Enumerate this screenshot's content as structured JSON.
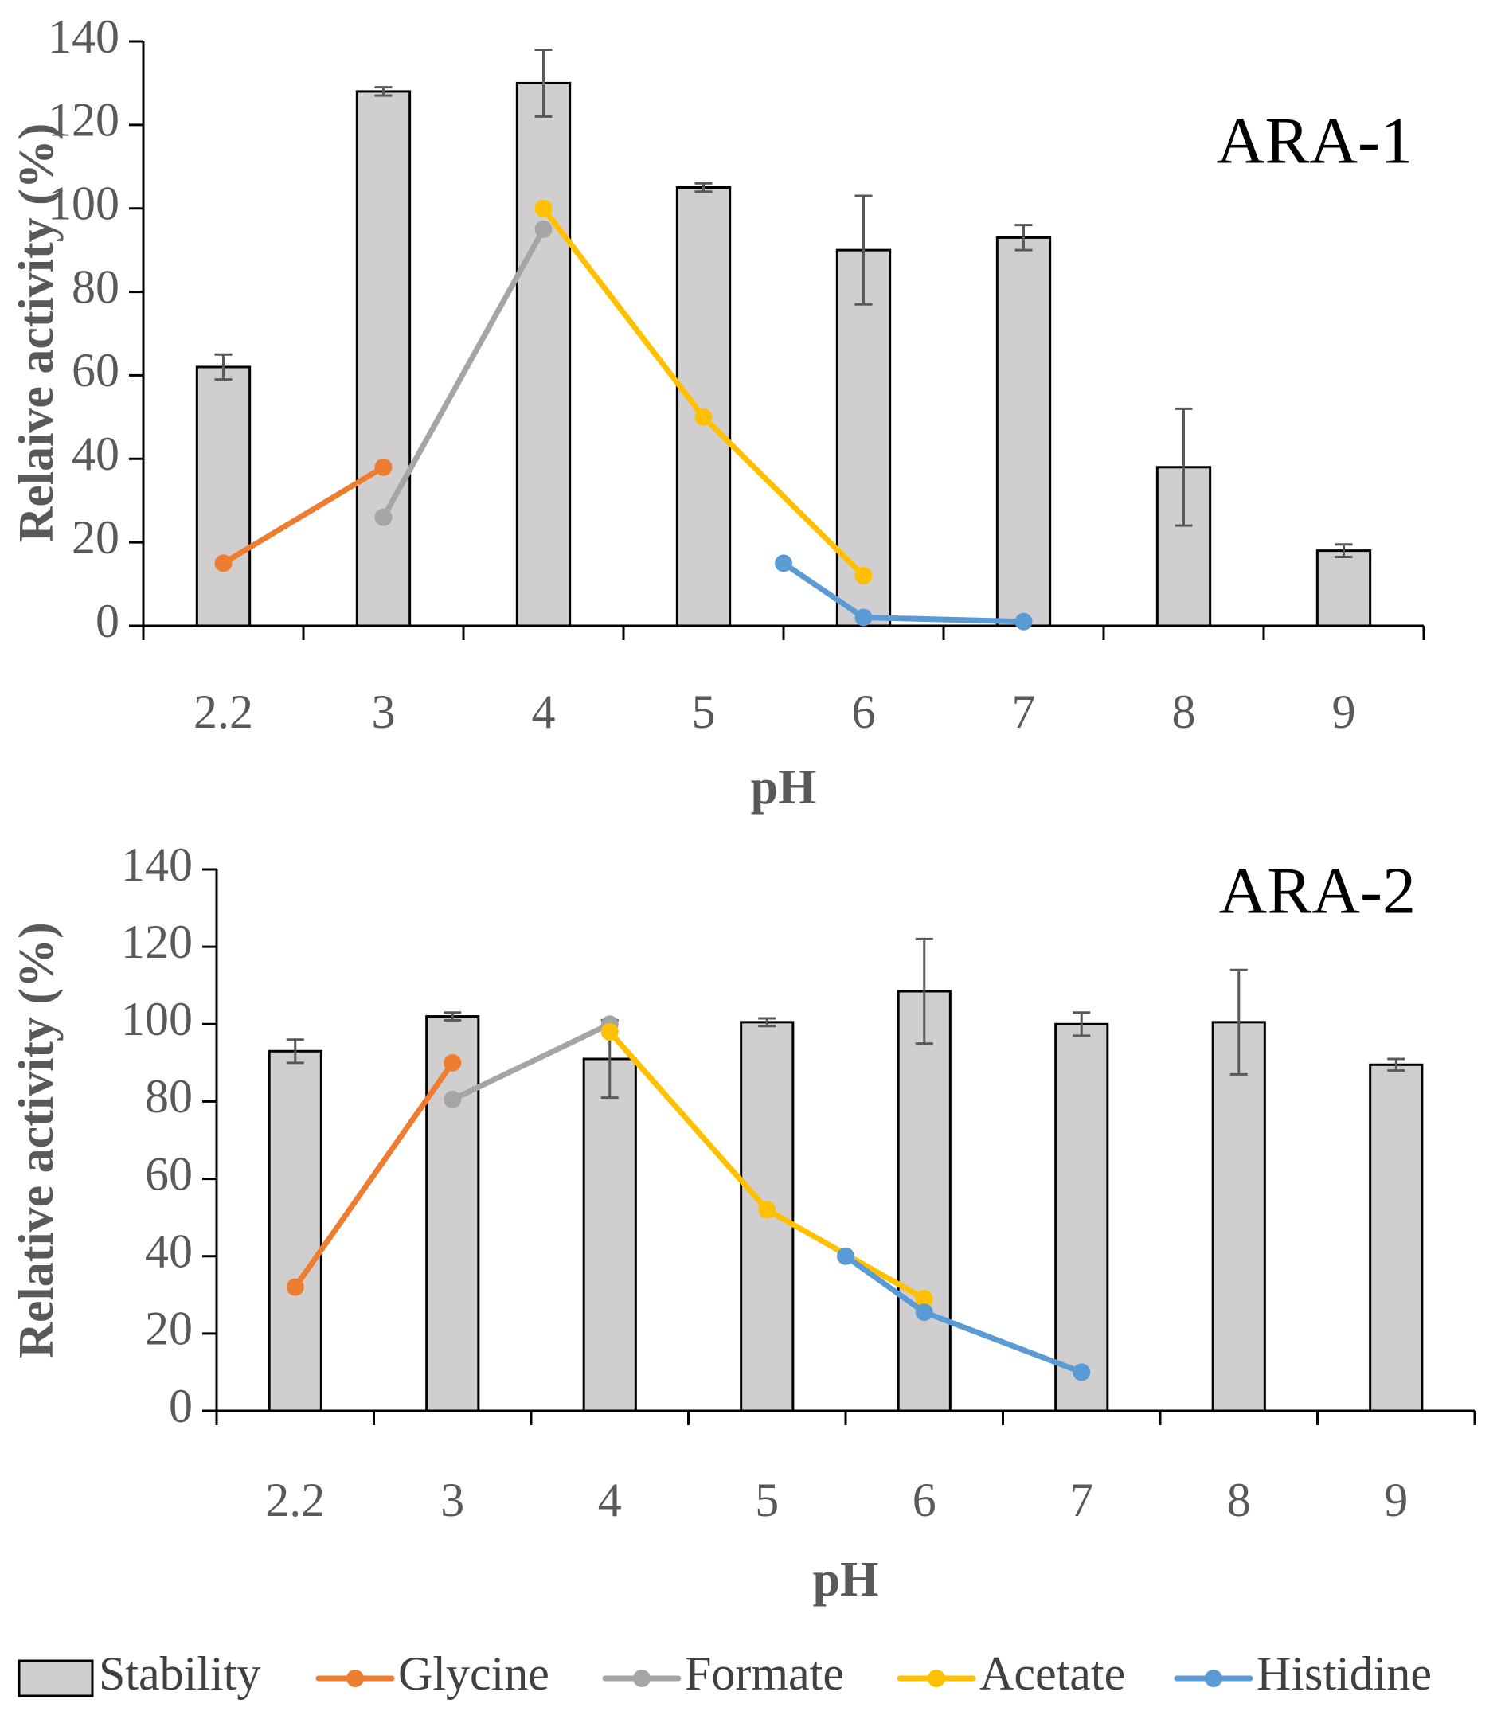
{
  "chart_data": [
    {
      "type": "bar",
      "title": "ARA-1",
      "xlabel": "pH",
      "ylabel": "Relaive activity (%)",
      "categories": [
        "2.2",
        "3",
        "4",
        "5",
        "6",
        "7",
        "8",
        "9"
      ],
      "ylim": [
        0,
        140
      ],
      "yticks": [
        0,
        20,
        40,
        60,
        80,
        100,
        120,
        140
      ],
      "grid": false,
      "bars": {
        "name": "Stability",
        "values": [
          62,
          128,
          130,
          105,
          90,
          93,
          38,
          18
        ],
        "errors": [
          3,
          1,
          8,
          1,
          13,
          3,
          14,
          1.5
        ]
      },
      "series": [
        {
          "name": "Glycine",
          "points": [
            {
              "x": "2.2",
              "y": 15
            },
            {
              "x": "3",
              "y": 38
            }
          ]
        },
        {
          "name": "Formate",
          "points": [
            {
              "x": "3",
              "y": 26
            },
            {
              "x": "4",
              "y": 95
            }
          ]
        },
        {
          "name": "Acetate",
          "points": [
            {
              "x": "4",
              "y": 100
            },
            {
              "x": "5",
              "y": 50
            },
            {
              "x": "6",
              "y": 12
            }
          ]
        },
        {
          "name": "Histidine",
          "points": [
            {
              "x": "6",
              "y": 15
            },
            {
              "x": "6",
              "y": 2
            },
            {
              "x": "7",
              "y": 1
            }
          ]
        }
      ]
    },
    {
      "type": "bar",
      "title": "ARA-2",
      "xlabel": "pH",
      "ylabel": "Relative activity (%)",
      "categories": [
        "2.2",
        "3",
        "4",
        "5",
        "6",
        "7",
        "8",
        "9"
      ],
      "ylim": [
        0,
        140
      ],
      "yticks": [
        0,
        20,
        40,
        60,
        80,
        100,
        120,
        140
      ],
      "grid": false,
      "bars": {
        "name": "Stability",
        "values": [
          93,
          102,
          91,
          100.5,
          108.5,
          100,
          100.5,
          89.5
        ],
        "errors": [
          3,
          1,
          10,
          1,
          13.5,
          3,
          13.5,
          1.5
        ]
      },
      "series": [
        {
          "name": "Glycine",
          "points": [
            {
              "x": "2.2",
              "y": 32
            },
            {
              "x": "3",
              "y": 90
            }
          ]
        },
        {
          "name": "Formate",
          "points": [
            {
              "x": "3",
              "y": 80.5
            },
            {
              "x": "4",
              "y": 100
            }
          ]
        },
        {
          "name": "Acetate",
          "points": [
            {
              "x": "4",
              "y": 98
            },
            {
              "x": "5",
              "y": 52
            },
            {
              "x": "6",
              "y": 29
            }
          ]
        },
        {
          "name": "Histidine",
          "points": [
            {
              "x": "6",
              "y": 40
            },
            {
              "x": "6",
              "y": 25.5
            },
            {
              "x": "7",
              "y": 10
            }
          ]
        }
      ]
    }
  ],
  "legend": {
    "position": "bottom",
    "items": [
      {
        "label": "Stability",
        "kind": "bar",
        "color": "#d0cece"
      },
      {
        "label": "Glycine",
        "kind": "line",
        "color": "#ed7d31"
      },
      {
        "label": "Formate",
        "kind": "line",
        "color": "#a5a5a5"
      },
      {
        "label": "Acetate",
        "kind": "line",
        "color": "#ffc000"
      },
      {
        "label": "Histidine",
        "kind": "line",
        "color": "#5b9bd5"
      }
    ]
  }
}
